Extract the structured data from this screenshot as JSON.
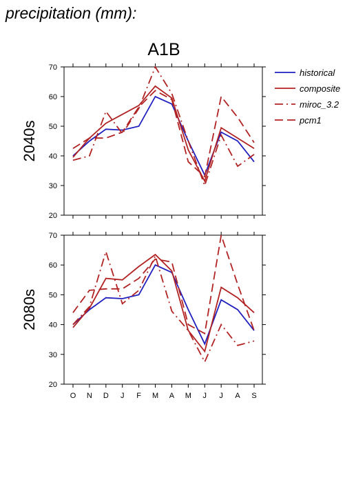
{
  "page_title": "precipitation (mm):",
  "figure_title": "A1B",
  "legend": [
    {
      "label": "historical",
      "color": "#1f1fbf",
      "dash": "solid"
    },
    {
      "label": "composite",
      "color": "#b22222",
      "dash": "solid"
    },
    {
      "label": "miroc_3.2",
      "color": "#b22222",
      "dash": "dashdot"
    },
    {
      "label": "pcm1",
      "color": "#b22222",
      "dash": "dashed"
    }
  ],
  "chart_data": [
    {
      "type": "line",
      "ylabel": "2040s",
      "categories": [
        "O",
        "N",
        "D",
        "J",
        "F",
        "M",
        "A",
        "M",
        "J",
        "J",
        "A",
        "S"
      ],
      "ylim": [
        20,
        70
      ],
      "yticks": [
        20,
        30,
        40,
        50,
        60,
        70
      ],
      "series": [
        {
          "name": "historical",
          "values": [
            40,
            45,
            49,
            48.7,
            50,
            60,
            57.5,
            45,
            33.5,
            48,
            45,
            38
          ]
        },
        {
          "name": "composite",
          "values": [
            39.5,
            46,
            51,
            54,
            57,
            63.5,
            59.5,
            42,
            31.5,
            49.5,
            46,
            42.5
          ]
        },
        {
          "name": "miroc_3.2",
          "values": [
            38.5,
            40,
            55,
            47.5,
            56,
            70,
            61,
            45,
            30,
            47,
            36.5,
            40.5
          ]
        },
        {
          "name": "pcm1",
          "values": [
            42.5,
            46,
            46,
            48,
            56.5,
            62,
            59,
            38,
            33,
            60,
            53,
            44.5
          ]
        }
      ]
    },
    {
      "type": "line",
      "ylabel": "2080s",
      "categories": [
        "O",
        "N",
        "D",
        "J",
        "F",
        "M",
        "A",
        "M",
        "J",
        "J",
        "A",
        "S"
      ],
      "ylim": [
        20,
        70
      ],
      "yticks": [
        20,
        30,
        40,
        50,
        60,
        70
      ],
      "series": [
        {
          "name": "historical",
          "values": [
            40,
            45,
            49,
            48.7,
            50,
            60,
            57.5,
            45,
            33.5,
            48.3,
            45,
            38
          ]
        },
        {
          "name": "composite",
          "values": [
            39,
            45.5,
            55.5,
            55,
            59.5,
            63.5,
            58,
            38,
            31,
            52.5,
            49,
            44
          ]
        },
        {
          "name": "miroc_3.2",
          "values": [
            40,
            46,
            64.5,
            47,
            51.5,
            63,
            44.5,
            38,
            27.5,
            40,
            33,
            34.5
          ]
        },
        {
          "name": "pcm1",
          "values": [
            44,
            51.5,
            52,
            52,
            55.5,
            62,
            61,
            40,
            37,
            70,
            53.5,
            38
          ]
        }
      ]
    }
  ]
}
